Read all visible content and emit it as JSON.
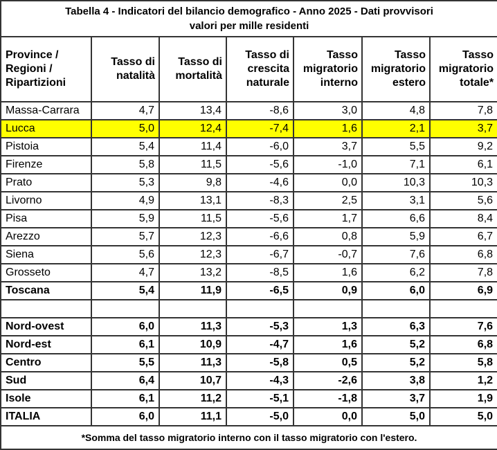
{
  "colors": {
    "highlight_row": "#ffff00",
    "border": "#333333",
    "text": "#000000",
    "background": "#ffffff"
  },
  "chart_data": {
    "type": "table",
    "title": "Tabella 4 - Indicatori del bilancio demografico - Anno 2025 - Dati provvisori",
    "subtitle": "valori per mille residenti",
    "columns": [
      "Province / Regioni / Ripartizioni",
      "Tasso di natalità",
      "Tasso di mortalità",
      "Tasso di crescita naturale",
      "Tasso migratorio interno",
      "Tasso migratorio estero",
      "Tasso migratorio totale*"
    ],
    "highlighted_row": "Lucca",
    "rows": [
      {
        "label": "Massa-Carrara",
        "values": [
          "4,7",
          "13,4",
          "-8,6",
          "3,0",
          "4,8",
          "7,8"
        ],
        "bold": false,
        "highlight": false,
        "spacer": false
      },
      {
        "label": "Lucca",
        "values": [
          "5,0",
          "12,4",
          "-7,4",
          "1,6",
          "2,1",
          "3,7"
        ],
        "bold": false,
        "highlight": true,
        "spacer": false
      },
      {
        "label": "Pistoia",
        "values": [
          "5,4",
          "11,4",
          "-6,0",
          "3,7",
          "5,5",
          "9,2"
        ],
        "bold": false,
        "highlight": false,
        "spacer": false
      },
      {
        "label": "Firenze",
        "values": [
          "5,8",
          "11,5",
          "-5,6",
          "-1,0",
          "7,1",
          "6,1"
        ],
        "bold": false,
        "highlight": false,
        "spacer": false
      },
      {
        "label": "Prato",
        "values": [
          "5,3",
          "9,8",
          "-4,6",
          "0,0",
          "10,3",
          "10,3"
        ],
        "bold": false,
        "highlight": false,
        "spacer": false
      },
      {
        "label": "Livorno",
        "values": [
          "4,9",
          "13,1",
          "-8,3",
          "2,5",
          "3,1",
          "5,6"
        ],
        "bold": false,
        "highlight": false,
        "spacer": false
      },
      {
        "label": "Pisa",
        "values": [
          "5,9",
          "11,5",
          "-5,6",
          "1,7",
          "6,6",
          "8,4"
        ],
        "bold": false,
        "highlight": false,
        "spacer": false
      },
      {
        "label": "Arezzo",
        "values": [
          "5,7",
          "12,3",
          "-6,6",
          "0,8",
          "5,9",
          "6,7"
        ],
        "bold": false,
        "highlight": false,
        "spacer": false
      },
      {
        "label": "Siena",
        "values": [
          "5,6",
          "12,3",
          "-6,7",
          "-0,7",
          "7,6",
          "6,8"
        ],
        "bold": false,
        "highlight": false,
        "spacer": false
      },
      {
        "label": "Grosseto",
        "values": [
          "4,7",
          "13,2",
          "-8,5",
          "1,6",
          "6,2",
          "7,8"
        ],
        "bold": false,
        "highlight": false,
        "spacer": false
      },
      {
        "label": "Toscana",
        "values": [
          "5,4",
          "11,9",
          "-6,5",
          "0,9",
          "6,0",
          "6,9"
        ],
        "bold": true,
        "highlight": false,
        "spacer": false
      },
      {
        "label": "",
        "values": [
          "",
          "",
          "",
          "",
          "",
          ""
        ],
        "bold": false,
        "highlight": false,
        "spacer": true
      },
      {
        "label": "Nord-ovest",
        "values": [
          "6,0",
          "11,3",
          "-5,3",
          "1,3",
          "6,3",
          "7,6"
        ],
        "bold": true,
        "highlight": false,
        "spacer": false
      },
      {
        "label": "Nord-est",
        "values": [
          "6,1",
          "10,9",
          "-4,7",
          "1,6",
          "5,2",
          "6,8"
        ],
        "bold": true,
        "highlight": false,
        "spacer": false
      },
      {
        "label": "Centro",
        "values": [
          "5,5",
          "11,3",
          "-5,8",
          "0,5",
          "5,2",
          "5,8"
        ],
        "bold": true,
        "highlight": false,
        "spacer": false
      },
      {
        "label": "Sud",
        "values": [
          "6,4",
          "10,7",
          "-4,3",
          "-2,6",
          "3,8",
          "1,2"
        ],
        "bold": true,
        "highlight": false,
        "spacer": false
      },
      {
        "label": "Isole",
        "values": [
          "6,1",
          "11,2",
          "-5,1",
          "-1,8",
          "3,7",
          "1,9"
        ],
        "bold": true,
        "highlight": false,
        "spacer": false
      },
      {
        "label": "ITALIA",
        "values": [
          "6,0",
          "11,1",
          "-5,0",
          "0,0",
          "5,0",
          "5,0"
        ],
        "bold": true,
        "highlight": false,
        "spacer": false
      }
    ],
    "footnote": "*Somma del tasso migratorio interno con il tasso migratorio con l'estero."
  }
}
